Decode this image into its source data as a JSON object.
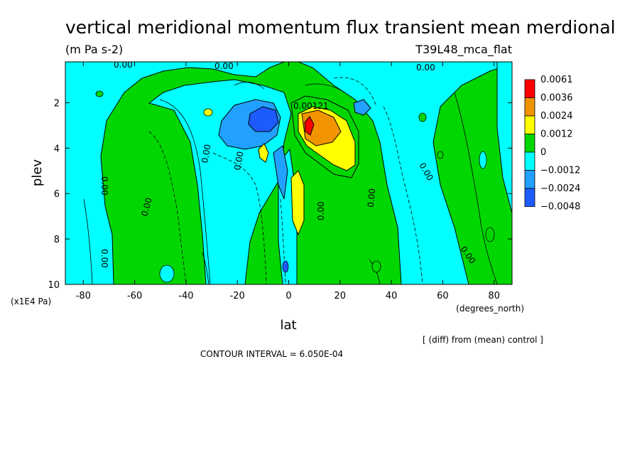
{
  "chart_data": {
    "type": "heatmap",
    "title": "vertical meridional momentum flux transient mean merdional",
    "subtitle": "(m Pa s-2)",
    "run_label": "T39L48_mca_flat",
    "xlabel": "lat",
    "x_units": "(degrees_north)",
    "ylabel": "plev",
    "y_units": "(x1E4 Pa)",
    "xlim": [
      -87,
      87
    ],
    "ylim": [
      10,
      0.2
    ],
    "x_ticks": [
      -80,
      -60,
      -40,
      -20,
      0,
      20,
      40,
      60,
      80
    ],
    "y_ticks": [
      2,
      4,
      6,
      8,
      10
    ],
    "colorbar": {
      "labels": [
        "0.0061",
        "0.0036",
        "0.0024",
        "0.0012",
        "0",
        "−0.0012",
        "−0.0024",
        "−0.0048"
      ],
      "colors": [
        "#ff0000",
        "#f29400",
        "#ffff00",
        "#00d700",
        "#00ffff",
        "#22a0ff",
        "#1d5bff"
      ]
    },
    "contour_labels": [
      "0.00",
      "0.00",
      "0.00",
      "0.00121",
      "0.00",
      "0.00",
      "0.00",
      "0.00",
      "0.00",
      "0.00",
      "0.00",
      "0.00",
      "0.00"
    ],
    "note": "[ (diff) from (mean) control ]",
    "contour_interval": "CONTOUR INTERVAL = 6.050E-04"
  }
}
